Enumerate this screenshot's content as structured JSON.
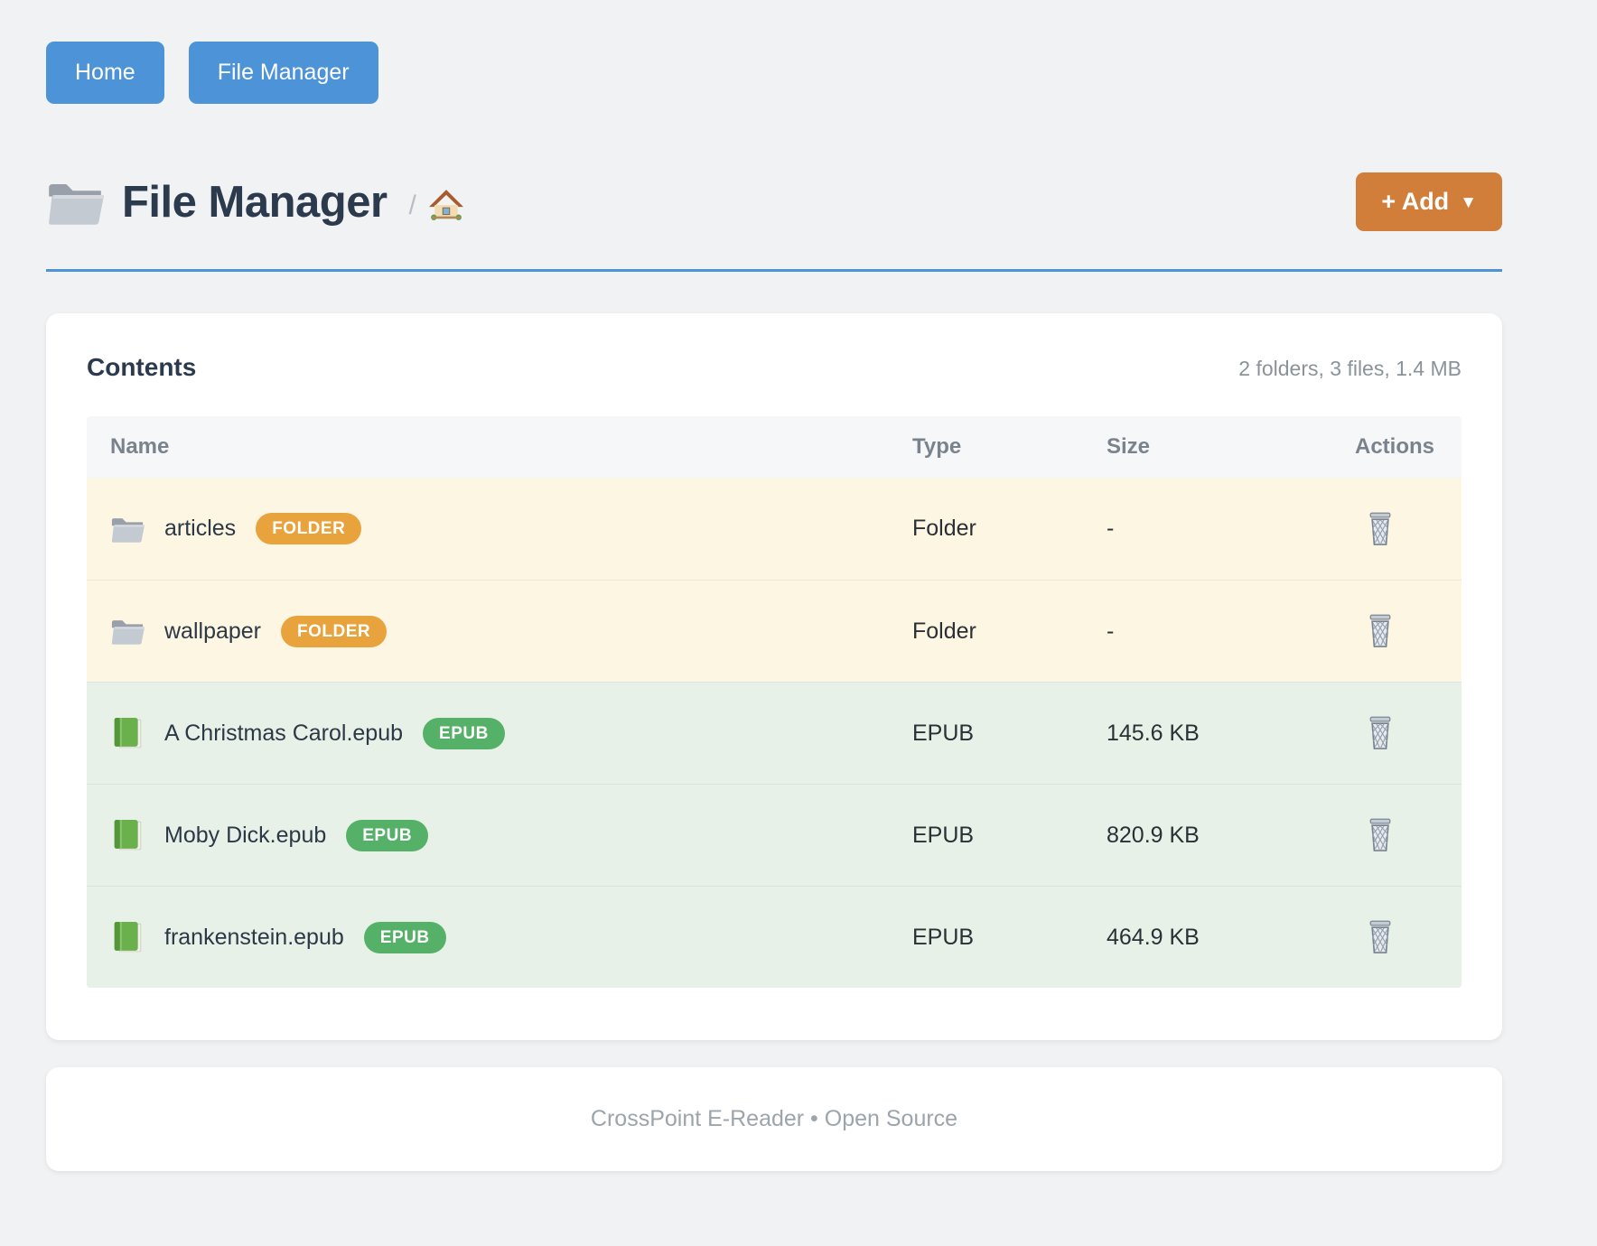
{
  "nav": {
    "home_label": "Home",
    "file_manager_label": "File Manager"
  },
  "header": {
    "title": "File Manager",
    "title_icon": "folder-icon",
    "breadcrumb_separator": "/",
    "breadcrumb_home_icon": "home-icon",
    "add_label": "+ Add",
    "add_caret": "▼"
  },
  "contents": {
    "title": "Contents",
    "summary": "2 folders, 3 files, 1.4 MB"
  },
  "table": {
    "columns": [
      "Name",
      "Type",
      "Size",
      "Actions"
    ],
    "rows": [
      {
        "name": "articles",
        "kind": "folder",
        "badge": "FOLDER",
        "type": "Folder",
        "size": "-",
        "icon": "folder-icon",
        "action_icon": "trash-icon"
      },
      {
        "name": "wallpaper",
        "kind": "folder",
        "badge": "FOLDER",
        "type": "Folder",
        "size": "-",
        "icon": "folder-icon",
        "action_icon": "trash-icon"
      },
      {
        "name": "A Christmas Carol.epub",
        "kind": "epub",
        "badge": "EPUB",
        "type": "EPUB",
        "size": "145.6 KB",
        "icon": "book-icon",
        "action_icon": "trash-icon"
      },
      {
        "name": "Moby Dick.epub",
        "kind": "epub",
        "badge": "EPUB",
        "type": "EPUB",
        "size": "820.9 KB",
        "icon": "book-icon",
        "action_icon": "trash-icon"
      },
      {
        "name": "frankenstein.epub",
        "kind": "epub",
        "badge": "EPUB",
        "type": "EPUB",
        "size": "464.9 KB",
        "icon": "book-icon",
        "action_icon": "trash-icon"
      }
    ]
  },
  "footer": {
    "text": "CrossPoint E-Reader • Open Source"
  },
  "colors": {
    "primary_blue": "#4d93d8",
    "add_orange": "#d07e3a",
    "folder_badge": "#e9a33c",
    "epub_badge": "#55b168",
    "folder_row_bg": "#fcf6e3",
    "epub_row_bg": "#e7f1e7",
    "page_bg": "#f1f2f3"
  }
}
